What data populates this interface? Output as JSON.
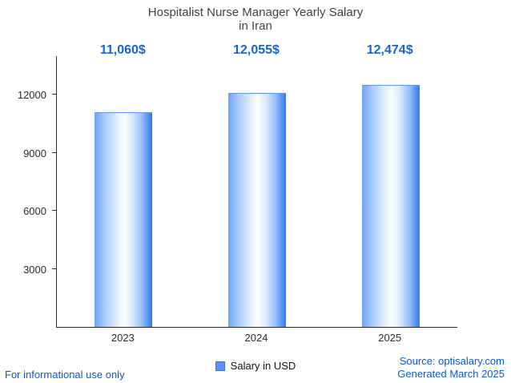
{
  "title": {
    "line1": "Hospitalist Nurse Manager Yearly Salary",
    "line2": "in Iran"
  },
  "chart_data": {
    "type": "bar",
    "title": "Hospitalist Nurse Manager Yearly Salary in Iran",
    "categories": [
      "2023",
      "2024",
      "2025"
    ],
    "values": [
      11060,
      12055,
      12474
    ],
    "value_labels": [
      "11,060$",
      "12,055$",
      "12,474$"
    ],
    "series_name": "Salary in USD",
    "xlabel": "",
    "ylabel": "",
    "ylim": [
      0,
      14000
    ],
    "yticks": [
      3000,
      6000,
      9000,
      12000
    ],
    "grid": false,
    "legend_position": "bottom",
    "bar_color_edge": "#3a7cee",
    "bar_color_center": "#fbfdff"
  },
  "legend": {
    "label": "Salary in USD",
    "swatch_color": "#5b8ff9"
  },
  "footer": {
    "left": "For informational use only",
    "source": "Source: optisalary.com",
    "generated": "Generated March 2025"
  },
  "colors": {
    "value_label": "#1765cf",
    "link_text": "#0b57d0",
    "title_text": "#424242",
    "axis_line": "#2b2b2b"
  }
}
